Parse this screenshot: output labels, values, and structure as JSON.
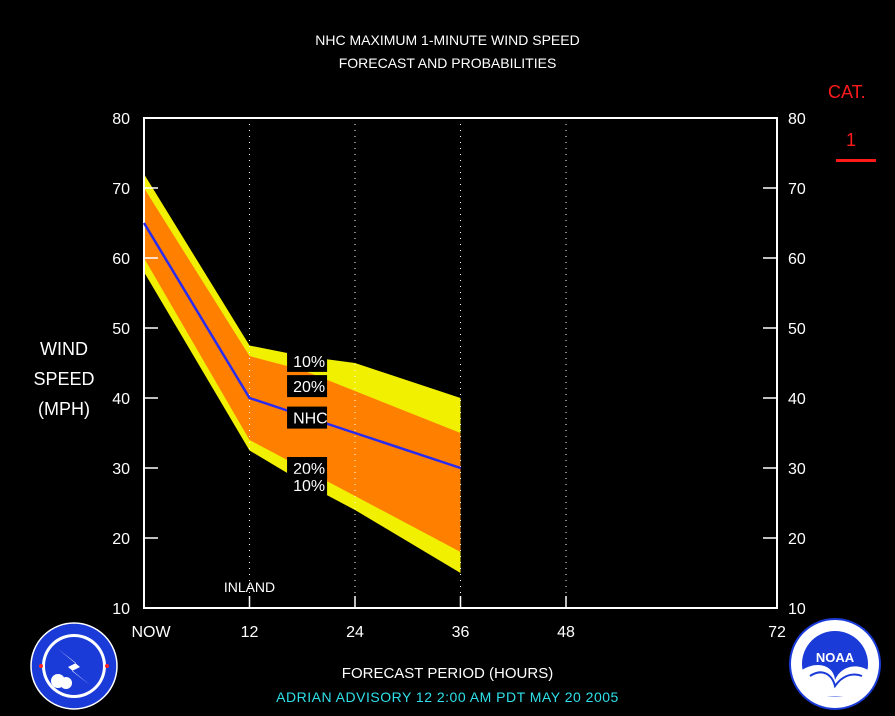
{
  "header": {
    "title_line1": "NHC MAXIMUM 1-MINUTE WIND SPEED",
    "title_line2": "FORECAST AND PROBABILITIES"
  },
  "ylabel_lines": [
    "WIND",
    "SPEED",
    "(MPH)"
  ],
  "category": {
    "label": "CAT.",
    "value": "1",
    "color": "#ff1a1a"
  },
  "xlabel": "FORECAST PERIOD (HOURS)",
  "advisory": "ADRIAN   ADVISORY  12 2:00  AM  PDT  MAY  20  2005",
  "logos": {
    "left": "national-weather-service-logo",
    "right": "noaa-logo"
  },
  "chart_data": {
    "type": "area",
    "title": "NHC MAXIMUM 1-MINUTE WIND SPEED FORECAST AND PROBABILITIES",
    "xlabel": "FORECAST PERIOD (HOURS)",
    "ylabel": "WIND SPEED (MPH)",
    "xlim": [
      0,
      72
    ],
    "ylim": [
      10,
      80
    ],
    "x_ticks": [
      0,
      12,
      24,
      36,
      48,
      72
    ],
    "x_tick_labels": [
      "NOW",
      "12",
      "24",
      "36",
      "48",
      "72"
    ],
    "y_ticks": [
      10,
      20,
      30,
      40,
      50,
      60,
      70,
      80
    ],
    "y_tick_labels": [
      "10",
      "20",
      "30",
      "40",
      "50",
      "60",
      "70",
      "80"
    ],
    "vertical_gridlines_at": [
      12,
      24,
      36,
      48
    ],
    "x": [
      0,
      12,
      18,
      24,
      36
    ],
    "series": [
      {
        "name": "10%",
        "role": "upper",
        "values": [
          72,
          47.5,
          46,
          45,
          40
        ]
      },
      {
        "name": "20%",
        "role": "upper",
        "values": [
          70,
          46,
          44,
          41,
          35
        ]
      },
      {
        "name": "NHC",
        "values": [
          65,
          40,
          37.5,
          35,
          30
        ]
      },
      {
        "name": "20%",
        "role": "lower",
        "values": [
          60,
          34,
          30,
          26,
          18
        ]
      },
      {
        "name": "10%",
        "role": "lower",
        "values": [
          58,
          32.5,
          28,
          24,
          15
        ]
      }
    ],
    "annotations": [
      {
        "text": "INLAND",
        "x": 12,
        "y": 13
      }
    ],
    "colors": {
      "outer_band": "#f0f000",
      "inner_band": "#ff8000",
      "nhc_line": "#2a2af0",
      "axes": "#ffffff",
      "background": "#000000"
    }
  }
}
